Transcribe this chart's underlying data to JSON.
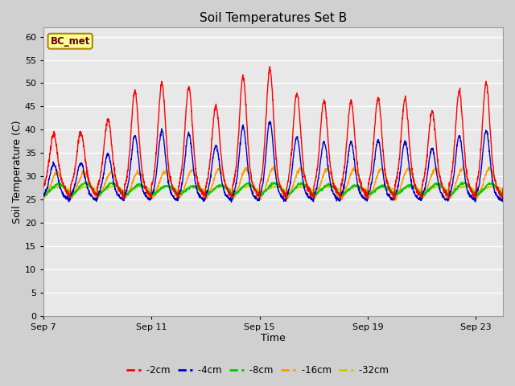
{
  "title": "Soil Temperatures Set B",
  "xlabel": "Time",
  "ylabel": "Soil Temperature (C)",
  "ylim": [
    0,
    62
  ],
  "yticks": [
    0,
    5,
    10,
    15,
    20,
    25,
    30,
    35,
    40,
    45,
    50,
    55,
    60
  ],
  "x_tick_labels": [
    "Sep 7",
    "Sep 11",
    "Sep 15",
    "Sep 19",
    "Sep 23"
  ],
  "x_tick_positions": [
    0,
    4,
    8,
    12,
    16
  ],
  "colors": {
    "-2cm": "#FF0000",
    "-4cm": "#0000CC",
    "-8cm": "#00CC00",
    "-16cm": "#FF9900",
    "-32cm": "#CCCC00"
  },
  "legend_label": "BC_met",
  "legend_bg": "#FFFF99",
  "legend_border": "#AA8800",
  "fig_bg": "#D0D0D0",
  "plot_bg": "#E8E8E8",
  "n_days": 17
}
